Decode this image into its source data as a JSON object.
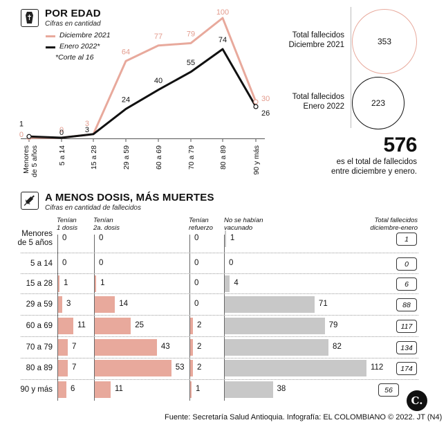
{
  "section1": {
    "title": "POR EDAD",
    "subtitle": "Cifras en cantidad",
    "legend": [
      {
        "label": "Diciembre 2021",
        "color": "#e8a99c"
      },
      {
        "label": "Enero 2022*",
        "color": "#111111"
      }
    ],
    "footnote": "*Corte al 16"
  },
  "chart_data": [
    {
      "type": "line",
      "categories": [
        "Menores de 5 años",
        "5 a 14",
        "15 a 28",
        "29 a 59",
        "60 a 69",
        "70 a 79",
        "80 a 89",
        "90 y más"
      ],
      "series": [
        {
          "name": "Diciembre 2021",
          "values": [
            0,
            0,
            3,
            64,
            77,
            79,
            100,
            30
          ],
          "color": "#e8a99c"
        },
        {
          "name": "Enero 2022*",
          "values": [
            1,
            0,
            3,
            24,
            40,
            55,
            74,
            26
          ],
          "color": "#111111"
        }
      ],
      "ylim": [
        0,
        100
      ]
    },
    {
      "type": "bar",
      "title": "A MENOS DOSIS, MÁS MUERTES",
      "subtitle": "Cifras en cantidad de fallecidos",
      "categories": [
        "Menores de 5 años",
        "5 a 14",
        "15 a 28",
        "29 a 59",
        "60 a 69",
        "70 a 79",
        "80 a 89",
        "90 y más"
      ],
      "series": [
        {
          "name": "Tenían 1 dosis",
          "values": [
            0,
            0,
            1,
            3,
            11,
            7,
            7,
            6
          ]
        },
        {
          "name": "Tenían 2a. dosis",
          "values": [
            0,
            0,
            1,
            14,
            25,
            43,
            53,
            11
          ]
        },
        {
          "name": "Tenían refuerzo",
          "values": [
            0,
            0,
            0,
            0,
            2,
            2,
            2,
            1
          ]
        },
        {
          "name": "No se habían vacunado",
          "values": [
            1,
            0,
            4,
            71,
            79,
            82,
            112,
            38
          ]
        },
        {
          "name": "Total fallecidos diciembre-enero",
          "values": [
            1,
            0,
            6,
            88,
            117,
            134,
            174,
            56
          ]
        }
      ]
    }
  ],
  "x_labels": [
    [
      "Menores",
      "de 5 años"
    ],
    [
      "5 a 14"
    ],
    [
      "15 a 28"
    ],
    [
      "29 a 59"
    ],
    [
      "60 a 69"
    ],
    [
      "70 a 79"
    ],
    [
      "80 a 89"
    ],
    [
      "90 y más"
    ]
  ],
  "totals": {
    "dec_label_1": "Total fallecidos",
    "dec_label_2": "Diciembre 2021",
    "dec_value": "353",
    "jan_label_1": "Total fallecidos",
    "jan_label_2": "Enero 2022",
    "jan_value": "223",
    "grand_total": "576",
    "grand_label_1": "es el total de fallecidos",
    "grand_label_2": "entre diciembre y enero."
  },
  "section2": {
    "title": "A MENOS DOSIS, MÁS MUERTES",
    "subtitle": "Cifras en cantidad de fallecidos",
    "col1_a": "Tenían",
    "col1_b": "1 dosis",
    "col2_a": "Tenían",
    "col2_b": "2a. dosis",
    "col3_a": "Tenían",
    "col3_b": "refuerzo",
    "col4_a": "No se habían",
    "col4_b": "vacunado",
    "col5_a": "Total fallecidos",
    "col5_b": "diciembre-enero",
    "row_labels": [
      [
        "Menores",
        "de 5 años"
      ],
      [
        "5 a 14"
      ],
      [
        "15 a 28"
      ],
      [
        "29 a 59"
      ],
      [
        "60 a 69"
      ],
      [
        "70 a 79"
      ],
      [
        "80 a 89"
      ],
      [
        "90 y más"
      ]
    ]
  },
  "colors": {
    "pink": "#e8a99c",
    "gray": "#c8c8c8",
    "black": "#111111"
  },
  "source": "Fuente: Secretaría Salud Antioquia. Infografía: EL COLOMBIANO © 2022. JT (N4)",
  "logo_letter": "C."
}
